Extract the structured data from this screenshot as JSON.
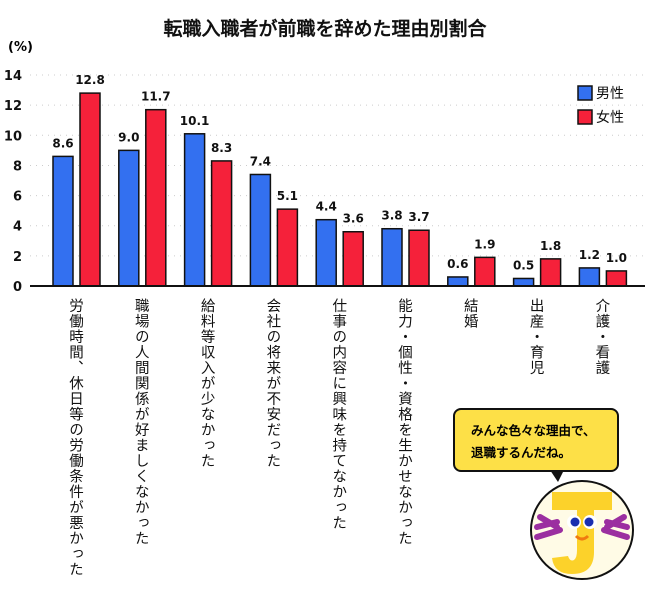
{
  "chart_data": {
    "type": "bar",
    "title": "転職入職者が前職を辞めた理由別割合",
    "ylabel": "(%)",
    "ylim": [
      0,
      14
    ],
    "yticks": [
      0,
      2,
      4,
      6,
      8,
      10,
      12,
      14
    ],
    "grid": true,
    "legend_position": "top-right",
    "categories": [
      "労働時間、休日等の労働条件が悪かった",
      "職場の人間関係が好ましくなかった",
      "給料等収入が少なかった",
      "会社の将来が不安だった",
      "仕事の内容に興味を持てなかった",
      "能力・個性・資格を生かせなかった",
      "結婚",
      "出産・育児",
      "介護・看護"
    ],
    "series": [
      {
        "name": "男性",
        "color": "#3370f0",
        "values": [
          8.6,
          9.0,
          10.1,
          7.4,
          4.4,
          3.8,
          0.6,
          0.5,
          1.2
        ]
      },
      {
        "name": "女性",
        "color": "#f5213a",
        "values": [
          12.8,
          11.7,
          8.3,
          5.1,
          3.6,
          3.7,
          1.9,
          1.8,
          1.0
        ]
      }
    ]
  },
  "bubble": {
    "line1": "みんな色々な理由で、",
    "line2": "退職するんだね。"
  },
  "mascot_icon": "smiling-yellow-character-icon"
}
